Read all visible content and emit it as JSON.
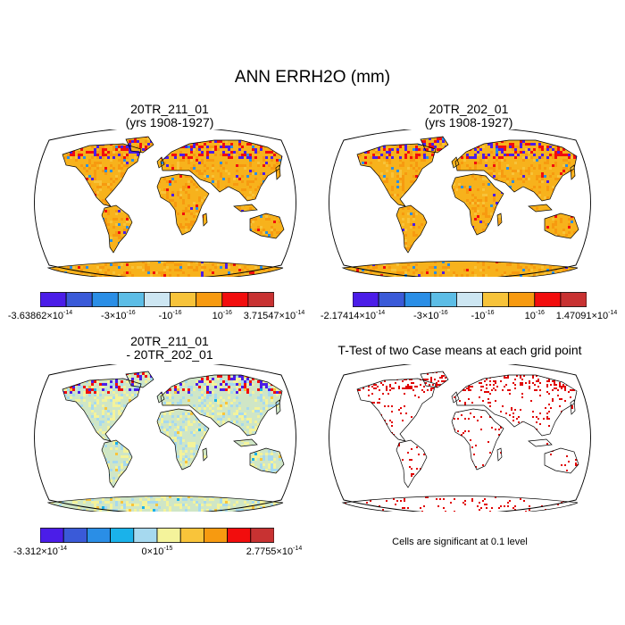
{
  "title": "ANN ERRH2O (mm)",
  "panels": [
    {
      "id": "p1",
      "title_line1": "20TR_211_01",
      "title_line2": "(yrs 1908-1927)",
      "style": "field",
      "colorbar": {
        "colors": [
          "#4b1de8",
          "#3a5ad8",
          "#2a8ee6",
          "#5cbde6",
          "#cde6f2",
          "#f7c33a",
          "#f79a10",
          "#f20d0d",
          "#c83232"
        ],
        "labels": [
          "-3.63862×10^-14",
          "-3×10^-16",
          "-10^-16",
          "10^-16",
          "3.71547×10^-14"
        ]
      }
    },
    {
      "id": "p2",
      "title_line1": "20TR_202_01",
      "title_line2": "(yrs 1908-1927)",
      "style": "field",
      "colorbar": {
        "colors": [
          "#4b1de8",
          "#3a5ad8",
          "#2a8ee6",
          "#5cbde6",
          "#cde6f2",
          "#f7c33a",
          "#f79a10",
          "#f20d0d",
          "#c83232"
        ],
        "labels": [
          "-2.17414×10^-14",
          "-3×10^-16",
          "-10^-16",
          "10^-16",
          "1.47091×10^-14"
        ]
      }
    },
    {
      "id": "p3",
      "title_line1": "20TR_211_01",
      "title_line2": "- 20TR_202_01",
      "style": "diff",
      "colorbar": {
        "colors": [
          "#4b1de8",
          "#3a5ad8",
          "#2a8ee6",
          "#1ab2ea",
          "#a6d9ef",
          "#f4f39b",
          "#f9c43a",
          "#f79a10",
          "#f20d0d",
          "#c83232"
        ],
        "labels": [
          "-3.312×10^-14",
          "0×10^-15",
          "2.7755×10^-14"
        ]
      }
    },
    {
      "id": "p4",
      "title_line1": "T-Test of two Case means at each grid point",
      "title_line2": "",
      "style": "ttest",
      "note": "Cells are significant at 0.1 level"
    }
  ],
  "colors": {
    "land_field": "#f7b21c",
    "land_diff": "#cfe6c6",
    "significant": "#e00000"
  }
}
